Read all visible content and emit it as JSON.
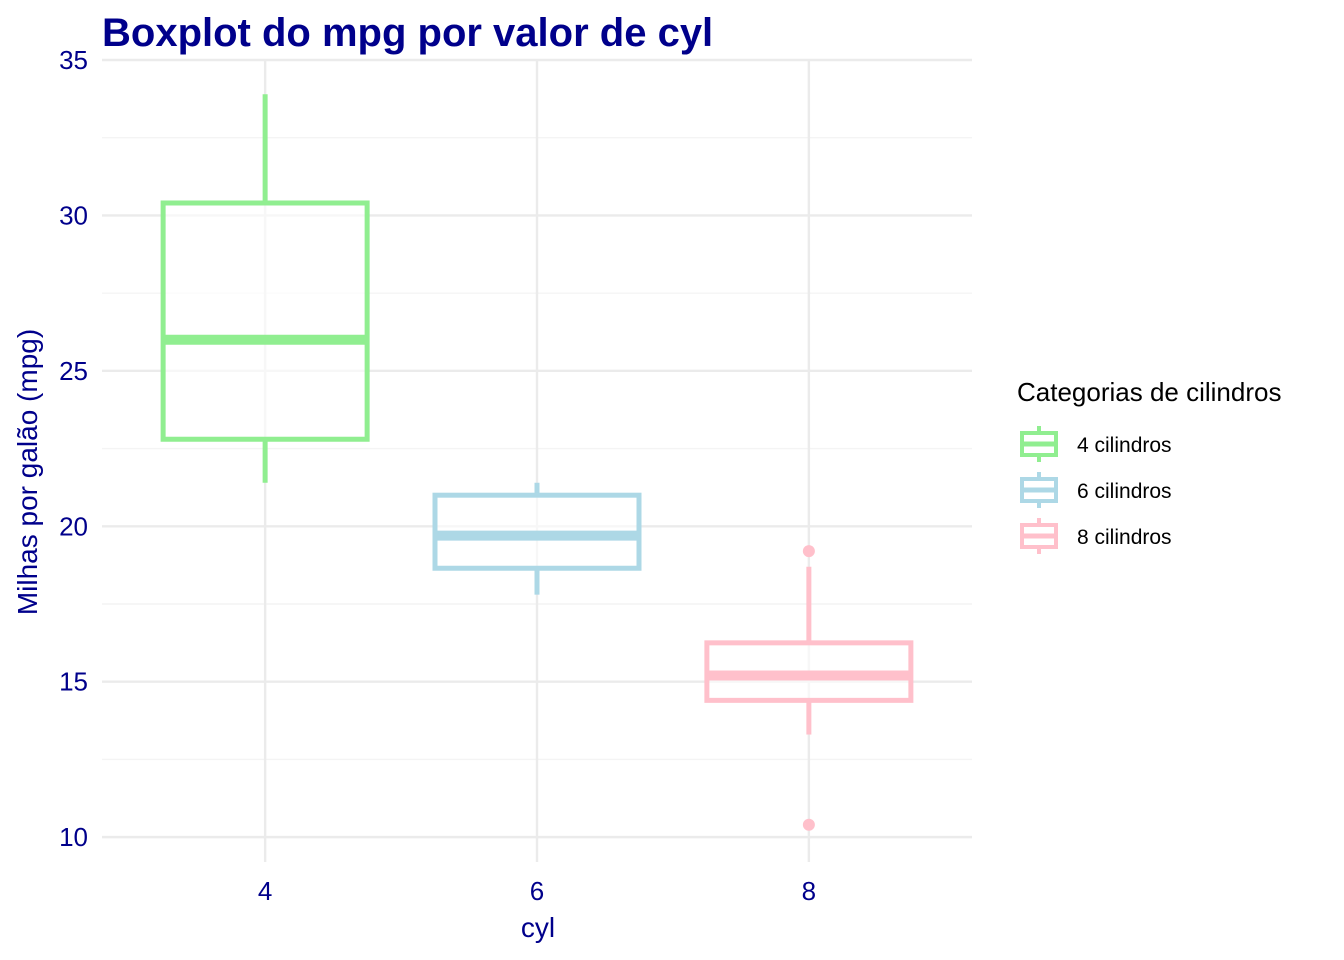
{
  "chart_data": {
    "type": "boxplot",
    "title": "Boxplot do mpg por valor de cyl",
    "xlabel": "cyl",
    "ylabel": "Milhas por galão (mpg)",
    "x_ticks": [
      "4",
      "6",
      "8"
    ],
    "x_values": [
      4,
      6,
      8
    ],
    "xlim": [
      2.8,
      9.2
    ],
    "ylim": [
      9.2,
      35
    ],
    "y_ticks": [
      10,
      15,
      20,
      25,
      30,
      35
    ],
    "y_minor_ticks": [
      12.5,
      17.5,
      22.5,
      27.5,
      32.5
    ],
    "grid": true,
    "legend": {
      "title": "Categorias de cilindros",
      "position": "right",
      "entries": [
        "4 cilindros",
        "6 cilindros",
        "8 cilindros"
      ]
    },
    "series": [
      {
        "name": "4 cilindros",
        "x": 4,
        "color": "#90EE90",
        "min": 21.4,
        "q1": 22.8,
        "median": 26.0,
        "q3": 30.4,
        "max": 33.9,
        "outliers": []
      },
      {
        "name": "6 cilindros",
        "x": 6,
        "color": "#ADD8E6",
        "min": 17.8,
        "q1": 18.65,
        "median": 19.7,
        "q3": 21.0,
        "max": 21.4,
        "outliers": []
      },
      {
        "name": "8 cilindros",
        "x": 8,
        "color": "#FFC0CB",
        "min": 13.3,
        "q1": 14.4,
        "median": 15.2,
        "q3": 16.25,
        "max": 18.7,
        "outliers": [
          19.2,
          10.4
        ]
      }
    ],
    "colors": {
      "title": "#00008B",
      "axis_text": "#00008B",
      "grid_major": "#EBEBEB",
      "grid_minor": "#F4F4F4",
      "legend_text": "#000000"
    }
  }
}
